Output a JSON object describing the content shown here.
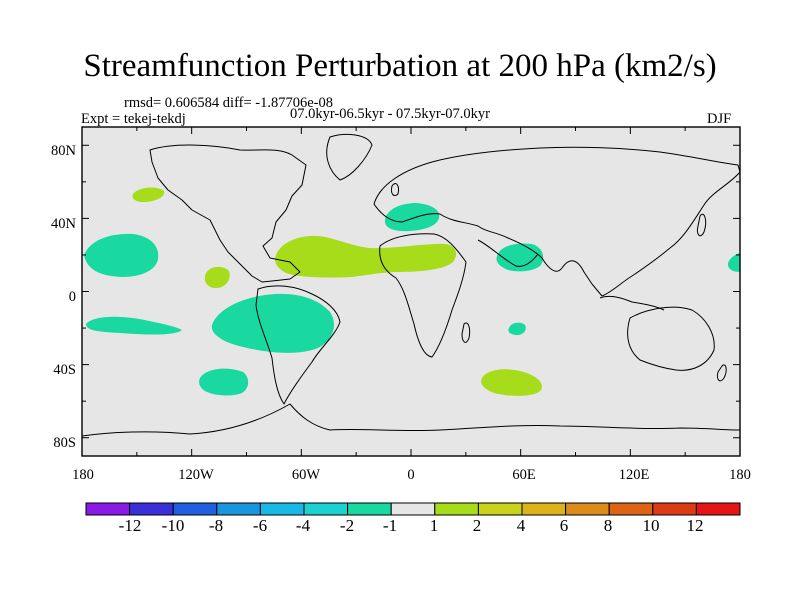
{
  "title": "Streamfunction Perturbation at 200 hPa (km2/s)",
  "stats_line": "rmsd= 0.606584  diff= -1.87706e-08",
  "experiment": "Expt = tekej-tekdj",
  "period": "07.0kyr-06.5kyr - 07.5kyr-07.0kyr",
  "season": "DJF",
  "map": {
    "projection": "cylindrical equidistant",
    "lon_range": [
      -180,
      180
    ],
    "lat_range": [
      -90,
      90
    ],
    "ocean_fill": "#e6e6e6",
    "x_ticks": [
      "180",
      "120W",
      "60W",
      "0",
      "60E",
      "120E",
      "180"
    ],
    "y_ticks": [
      "80N",
      "40N",
      "0",
      "40S",
      "80S"
    ]
  },
  "colorbar": {
    "colors": [
      "#8c1ae6",
      "#3b2fd9",
      "#2060e0",
      "#1a96e0",
      "#1ab8e6",
      "#1ad2d2",
      "#1ad9a0",
      "#e6e6e6",
      "#a6dc1a",
      "#c8d21a",
      "#dcb41a",
      "#dc8c1a",
      "#dc6414",
      "#dc3c14",
      "#e61414"
    ],
    "labels": [
      "-12",
      "-10",
      "-8",
      "-6",
      "-4",
      "-2",
      "-1",
      "1",
      "2",
      "4",
      "6",
      "8",
      "10",
      "12"
    ]
  }
}
